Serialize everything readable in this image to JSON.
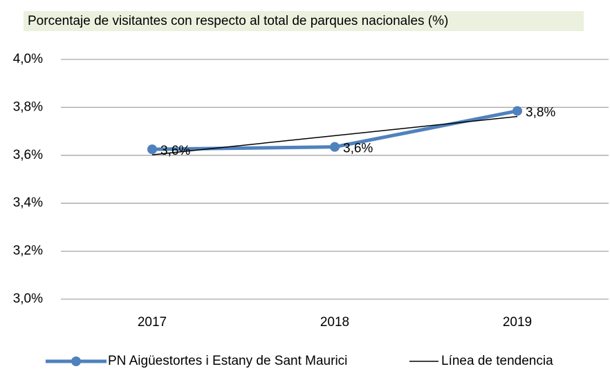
{
  "chart_data": {
    "type": "line",
    "title": "Porcentaje de visitantes  con respecto al total de parques nacionales  (%)",
    "categories": [
      "2017",
      "2018",
      "2019"
    ],
    "series": [
      {
        "name": "PN Aigüestortes i Estany de Sant Maurici",
        "color": "#4f81bd",
        "values": [
          3.625,
          3.635,
          3.785
        ],
        "value_labels": [
          "3,6%",
          "3,6%",
          "3,8%"
        ]
      },
      {
        "name": "Línea de tendencia",
        "color": "#000000",
        "values": [
          3.602,
          3.682,
          3.762
        ]
      }
    ],
    "ylim": [
      3.0,
      4.0
    ],
    "yticks": [
      {
        "value": 3.0,
        "label": "3,0%"
      },
      {
        "value": 3.2,
        "label": "3,2%"
      },
      {
        "value": 3.4,
        "label": "3,4%"
      },
      {
        "value": 3.6,
        "label": "3,6%"
      },
      {
        "value": 3.8,
        "label": "3,8%"
      },
      {
        "value": 4.0,
        "label": "4,0%"
      }
    ],
    "grid": true
  }
}
